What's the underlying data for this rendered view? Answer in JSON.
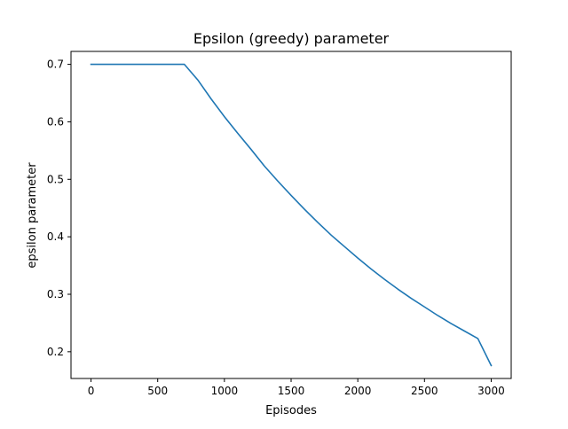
{
  "chart_data": {
    "type": "line",
    "title": "Epsilon (greedy) parameter",
    "xlabel": "Episodes",
    "ylabel": "epsilon parameter",
    "xlim": [
      -150,
      3150
    ],
    "ylim": [
      0.1535,
      0.7225
    ],
    "xticks": [
      0,
      500,
      1000,
      1500,
      2000,
      2500,
      3000
    ],
    "xtick_labels": [
      "0",
      "500",
      "1000",
      "1500",
      "2000",
      "2500",
      "3000"
    ],
    "yticks": [
      0.2,
      0.3,
      0.4,
      0.5,
      0.6,
      0.7
    ],
    "ytick_labels": [
      "0.2",
      "0.3",
      "0.4",
      "0.5",
      "0.6",
      "0.7"
    ],
    "grid": false,
    "series": [
      {
        "color": "#1f77b4",
        "x": [
          0,
          700,
          800,
          900,
          1000,
          1100,
          1200,
          1300,
          1400,
          1500,
          1600,
          1700,
          1800,
          1900,
          2000,
          2100,
          2200,
          2300,
          2400,
          2500,
          2600,
          2700,
          2800,
          2900,
          3000
        ],
        "y": [
          0.7,
          0.7,
          0.673,
          0.64,
          0.609,
          0.58,
          0.552,
          0.523,
          0.497,
          0.472,
          0.448,
          0.425,
          0.403,
          0.383,
          0.363,
          0.344,
          0.326,
          0.309,
          0.293,
          0.278,
          0.263,
          0.249,
          0.236,
          0.223,
          0.176
        ]
      }
    ]
  }
}
